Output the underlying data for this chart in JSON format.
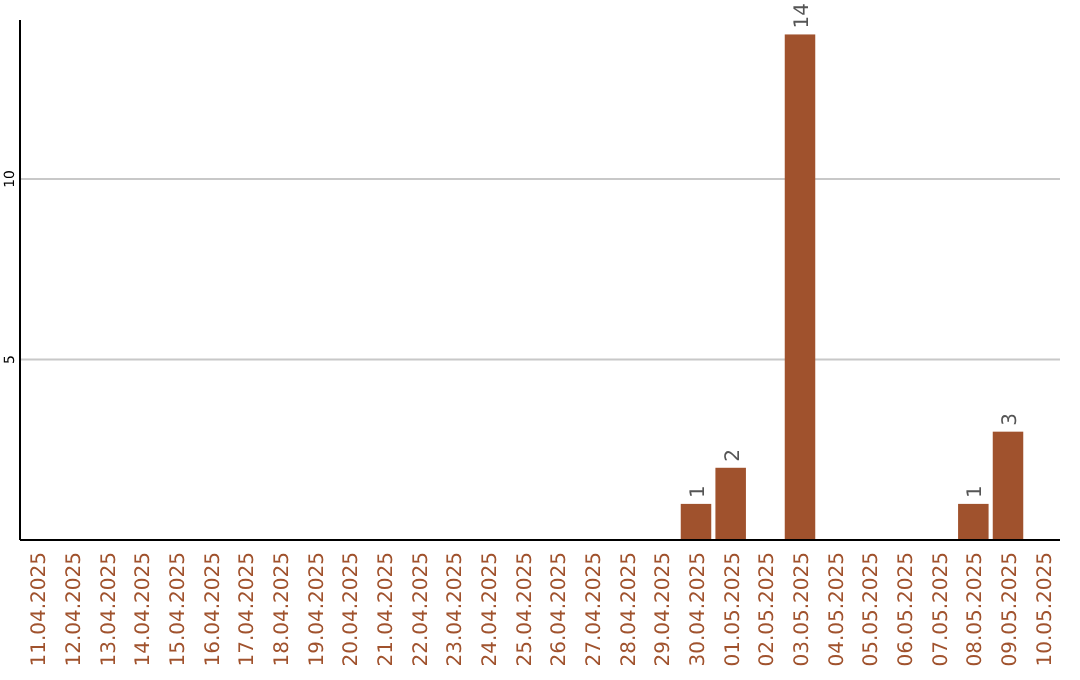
{
  "chart_data": {
    "type": "bar",
    "categories": [
      "11.04.2025",
      "12.04.2025",
      "13.04.2025",
      "14.04.2025",
      "15.04.2025",
      "16.04.2025",
      "17.04.2025",
      "18.04.2025",
      "19.04.2025",
      "20.04.2025",
      "21.04.2025",
      "22.04.2025",
      "23.04.2025",
      "24.04.2025",
      "25.04.2025",
      "26.04.2025",
      "27.04.2025",
      "28.04.2025",
      "29.04.2025",
      "30.04.2025",
      "01.05.2025",
      "02.05.2025",
      "03.05.2025",
      "04.05.2025",
      "05.05.2025",
      "06.05.2025",
      "07.05.2025",
      "08.05.2025",
      "09.05.2025",
      "10.05.2025"
    ],
    "values": [
      0,
      0,
      0,
      0,
      0,
      0,
      0,
      0,
      0,
      0,
      0,
      0,
      0,
      0,
      0,
      0,
      0,
      0,
      0,
      1,
      2,
      0,
      14,
      0,
      0,
      0,
      0,
      1,
      3,
      0
    ],
    "value_labels": [
      null,
      null,
      null,
      null,
      null,
      null,
      null,
      null,
      null,
      null,
      null,
      null,
      null,
      null,
      null,
      null,
      null,
      null,
      null,
      "1",
      "2",
      null,
      "14",
      null,
      null,
      null,
      null,
      "1",
      "3",
      null
    ],
    "color": "#a0522d",
    "ylim": [
      0,
      14.4
    ],
    "yticks": [
      5,
      10
    ],
    "grid": "y"
  }
}
